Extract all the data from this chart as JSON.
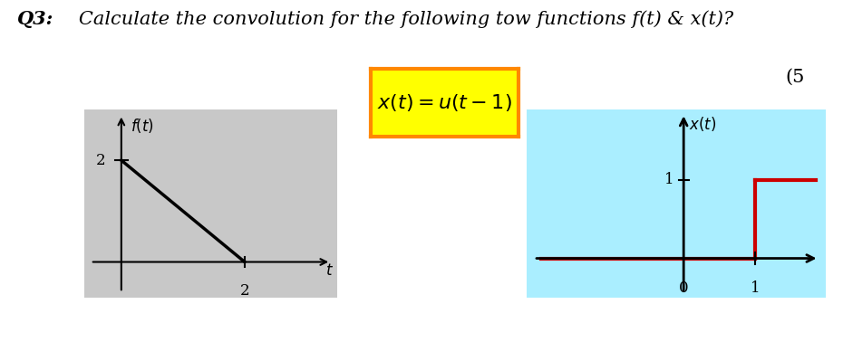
{
  "bg_color": "#ffffff",
  "left_panel_bg": "#c8c8c8",
  "right_panel_bg": "#aaeeff",
  "graph_right_bg": "#ffffff",
  "label_ft": "$f(t)$",
  "label_xt": "$x(t)$",
  "label_t": "$t$",
  "ylabel_2": "2",
  "xlabel_2": "2",
  "xval_0": "0",
  "xval_1": "1",
  "yval_1": "1",
  "equation_box_color": "#ffff00",
  "equation_box_edge": "#ff8800",
  "equation_text": "$x(t)=u(t-1)$",
  "step_color": "#cc0000",
  "axis_color": "#000000",
  "font_size_title": 15,
  "font_size_eq": 15,
  "font_size_labels": 11,
  "title_q3": "Q3:",
  "title_rest": "   Calculate the convolution for the following tow functions f(t) & x(t)?",
  "subtitle_text": "(5"
}
